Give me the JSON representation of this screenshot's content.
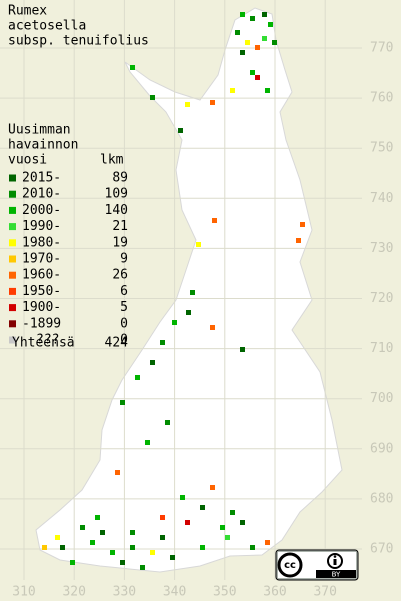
{
  "map": {
    "title": [
      "Rumex",
      "acetosella",
      "subsp. tenuifolius"
    ],
    "legend_heading": [
      "Uusimman",
      "havainnon",
      "vuosi"
    ],
    "count_heading": "lkm",
    "legend": [
      {
        "label": "2015-",
        "count": 89,
        "color": "#006400"
      },
      {
        "label": "2010-",
        "count": 109,
        "color": "#008c00"
      },
      {
        "label": "2000-",
        "count": 140,
        "color": "#00b400"
      },
      {
        "label": "1990-",
        "count": 21,
        "color": "#33dd33"
      },
      {
        "label": "1980-",
        "count": 19,
        "color": "#ffff00"
      },
      {
        "label": "1970-",
        "count": 9,
        "color": "#ffc800"
      },
      {
        "label": "1960-",
        "count": 26,
        "color": "#ff6400"
      },
      {
        "label": "1950-",
        "count": 6,
        "color": "#ff3c00"
      },
      {
        "label": "1900-",
        "count": 5,
        "color": "#d20000"
      },
      {
        "label": "-1899",
        "count": 0,
        "color": "#820000"
      },
      {
        "label": "???",
        "count": 0,
        "color": "#c8c8c8"
      }
    ],
    "total_label": "Yhteensä",
    "total": 424,
    "xticks": [
      310,
      320,
      330,
      340,
      350,
      360,
      370
    ],
    "yticks": [
      670,
      680,
      690,
      700,
      710,
      720,
      730,
      740,
      750,
      760,
      770
    ],
    "license": "BY"
  }
}
